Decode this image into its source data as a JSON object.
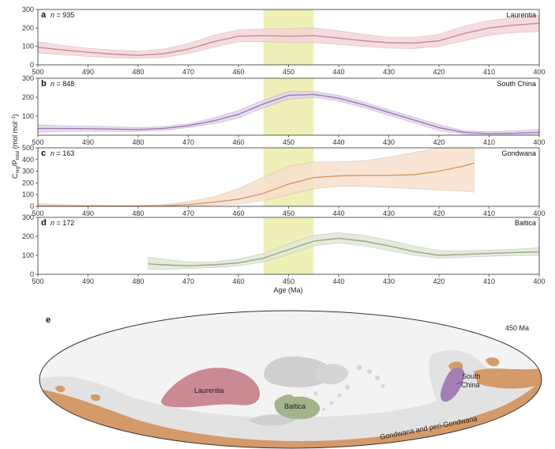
{
  "figure": {
    "xlabel": "Age (Ma)",
    "ylabel": "C_org/P_total (mol mol⁻¹)",
    "ylabel_main": "C",
    "ylabel_sub1": "org",
    "ylabel_mid": "/P",
    "ylabel_sub2": "total",
    "ylabel_unit": " (mol mol",
    "ylabel_sup": "−1",
    "ylabel_close": ")",
    "highlight_band_ma": [
      455,
      445
    ],
    "highlight_color": "#eef0b8"
  },
  "chart_data": [
    {
      "type": "line",
      "panel": "a",
      "region": "Laurentia",
      "n_prefix": "n",
      "n_value": "= 935",
      "xlim": [
        500,
        400
      ],
      "ylim": [
        0,
        300
      ],
      "x_ticks": [
        "500",
        "490",
        "480",
        "470",
        "460",
        "450",
        "440",
        "430",
        "420",
        "410",
        "400"
      ],
      "y_ticks": [
        "0",
        "100",
        "200",
        "300"
      ],
      "color": "#c98a94",
      "band_color": "#f2d5d9",
      "x": [
        500,
        495,
        490,
        485,
        480,
        475,
        470,
        465,
        460,
        455,
        450,
        445,
        440,
        435,
        430,
        425,
        420,
        415,
        410,
        405,
        400
      ],
      "y": [
        95,
        80,
        68,
        58,
        52,
        60,
        85,
        125,
        155,
        158,
        155,
        158,
        145,
        130,
        120,
        118,
        130,
        170,
        200,
        215,
        225
      ],
      "lower": [
        65,
        55,
        45,
        38,
        35,
        40,
        60,
        95,
        125,
        125,
        120,
        120,
        110,
        100,
        90,
        88,
        100,
        130,
        160,
        175,
        180
      ],
      "upper": [
        125,
        105,
        90,
        80,
        75,
        85,
        115,
        160,
        190,
        195,
        195,
        200,
        185,
        165,
        150,
        150,
        165,
        210,
        240,
        255,
        270
      ]
    },
    {
      "type": "line",
      "panel": "b",
      "region": "South China",
      "n_prefix": "n",
      "n_value": "= 848",
      "xlim": [
        500,
        400
      ],
      "ylim": [
        0,
        300
      ],
      "x_ticks": [
        "500",
        "490",
        "480",
        "470",
        "460",
        "450",
        "440",
        "430",
        "420",
        "410",
        "400"
      ],
      "y_ticks": [
        "100",
        "200",
        "300"
      ],
      "color": "#9a7ab0",
      "band_color": "#e3d5ec",
      "x": [
        500,
        495,
        490,
        485,
        480,
        475,
        470,
        465,
        460,
        455,
        450,
        445,
        440,
        435,
        430,
        425,
        420,
        415,
        410,
        405,
        400
      ],
      "y": [
        35,
        35,
        34,
        32,
        30,
        35,
        50,
        75,
        110,
        165,
        210,
        215,
        195,
        160,
        120,
        80,
        40,
        15,
        8,
        10,
        15
      ],
      "lower": [
        15,
        20,
        20,
        20,
        20,
        25,
        40,
        60,
        90,
        145,
        190,
        200,
        180,
        145,
        105,
        65,
        25,
        5,
        0,
        0,
        0
      ],
      "upper": [
        55,
        50,
        48,
        44,
        40,
        45,
        60,
        90,
        130,
        185,
        230,
        230,
        210,
        175,
        135,
        95,
        55,
        25,
        18,
        22,
        30
      ]
    },
    {
      "type": "line",
      "panel": "c",
      "region": "Gondwana",
      "n_prefix": "n",
      "n_value": "= 163",
      "xlim": [
        500,
        400
      ],
      "ylim": [
        0,
        500
      ],
      "x_ticks": [
        "500",
        "490",
        "480",
        "470",
        "460",
        "450",
        "440",
        "430",
        "420",
        "410",
        "400"
      ],
      "y_ticks": [
        "0",
        "100",
        "200",
        "300",
        "400",
        "500"
      ],
      "color": "#d49a6a",
      "band_color": "#f6dfcc",
      "x": [
        500,
        495,
        490,
        485,
        480,
        475,
        470,
        465,
        460,
        455,
        450,
        445,
        440,
        435,
        430,
        425,
        420,
        415,
        413
      ],
      "y": [
        5,
        3,
        2,
        2,
        2,
        5,
        15,
        35,
        60,
        110,
        190,
        245,
        260,
        265,
        265,
        270,
        300,
        345,
        370
      ],
      "lower": [
        0,
        0,
        0,
        0,
        0,
        0,
        0,
        10,
        20,
        50,
        100,
        150,
        170,
        170,
        160,
        150,
        140,
        130,
        120
      ],
      "upper": [
        25,
        15,
        10,
        8,
        8,
        15,
        40,
        80,
        150,
        250,
        340,
        380,
        380,
        390,
        420,
        460,
        500,
        500,
        500
      ]
    },
    {
      "type": "line",
      "panel": "d",
      "region": "Baltica",
      "n_prefix": "n",
      "n_value": "= 172",
      "xlim": [
        500,
        400
      ],
      "ylim": [
        0,
        300
      ],
      "x_ticks": [
        "500",
        "490",
        "480",
        "470",
        "460",
        "450",
        "440",
        "430",
        "420",
        "410",
        "400"
      ],
      "x_ticks_bottom": [
        "500",
        "490",
        "480",
        "470",
        "460",
        "450",
        "440",
        "430",
        "420",
        "410",
        "400"
      ],
      "y_ticks": [
        "0",
        "100",
        "200",
        "300"
      ],
      "color": "#98a886",
      "band_color": "#e0e7d6",
      "x": [
        478,
        475,
        470,
        465,
        460,
        455,
        450,
        445,
        440,
        435,
        430,
        425,
        420,
        415,
        410,
        405,
        400
      ],
      "y": [
        55,
        50,
        45,
        50,
        60,
        85,
        130,
        175,
        190,
        175,
        150,
        120,
        100,
        105,
        110,
        115,
        118
      ],
      "lower": [
        25,
        25,
        30,
        35,
        45,
        65,
        105,
        150,
        165,
        150,
        125,
        100,
        85,
        90,
        95,
        98,
        100
      ],
      "upper": [
        90,
        80,
        65,
        65,
        80,
        110,
        160,
        205,
        220,
        205,
        180,
        150,
        125,
        125,
        128,
        132,
        140
      ]
    }
  ],
  "map": {
    "panel": "e",
    "age_label": "450 Ma",
    "continents": [
      {
        "name": "Laurentia",
        "color": "#c98a94"
      },
      {
        "name": "Baltica",
        "color": "#a3b48c"
      },
      {
        "name": "South China",
        "color": "#a37fb5"
      },
      {
        "name": "Gondwana and peri-Gondwana",
        "color": "#d49a6a"
      }
    ],
    "other_landmass_color": "#cfcfcf",
    "shelf_color": "#e0e0e0",
    "ocean_color": "#f2f2f2"
  }
}
